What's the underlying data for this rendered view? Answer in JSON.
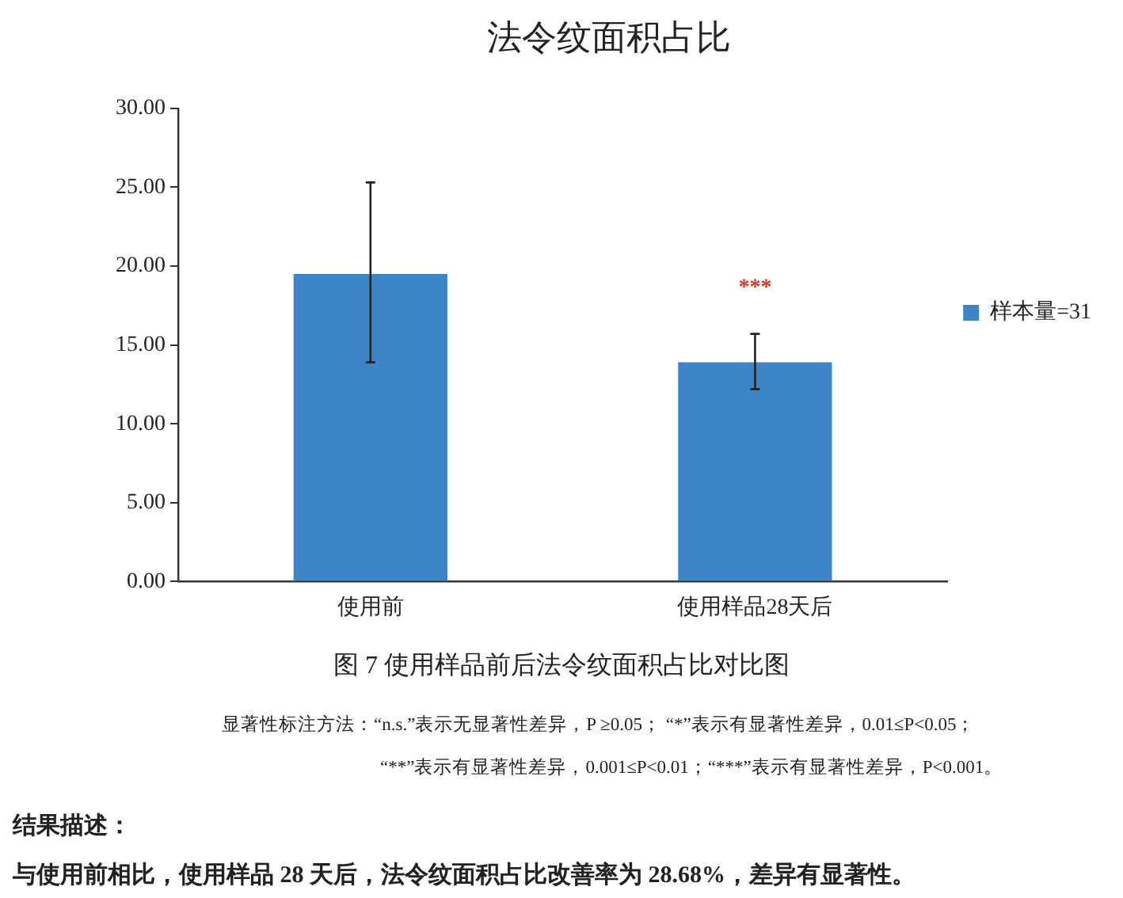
{
  "chart_data": {
    "type": "bar",
    "title": "法令纹面积占比",
    "categories": [
      "使用前",
      "使用样品28天后"
    ],
    "series": [
      {
        "name": "样本量=31",
        "color": "#3d85c6",
        "values": [
          19.5,
          13.9
        ],
        "errors": [
          [
            13.9,
            25.3
          ],
          [
            12.2,
            15.7
          ]
        ]
      }
    ],
    "ylim": [
      0,
      30
    ],
    "yticks": [
      {
        "value": 0,
        "label": "0.00"
      },
      {
        "value": 5,
        "label": "5.00"
      },
      {
        "value": 10,
        "label": "10.00"
      },
      {
        "value": 15,
        "label": "15.00"
      },
      {
        "value": 20,
        "label": "20.00"
      },
      {
        "value": 25,
        "label": "25.00"
      },
      {
        "value": 30,
        "label": "30.00"
      }
    ],
    "grid": false,
    "legend": "right",
    "annotations": [
      "***",
      "图 7  使用样品前后法令纹面积占比对比图",
      "显著性标注方法：“n.s.”表示无显著性差异，P ≥0.05；  “*”表示有显著性差异，0.01≤P<0.05；",
      "“**”表示有显著性差异，0.001≤P<0.01；“***”表示有显著性差异，P<0.001。",
      "结果描述：",
      "与使用前相比，使用样品 28 天后，法令纹面积占比改善率为 28.68%，差异有显著性。"
    ]
  }
}
